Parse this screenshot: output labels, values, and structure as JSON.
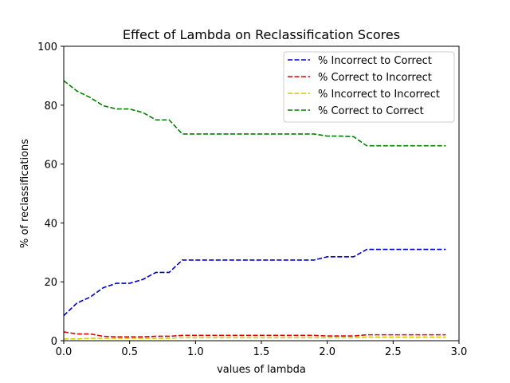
{
  "chart_data": {
    "type": "line",
    "title": "Effect of Lambda on Reclassification Scores",
    "xlabel": "values of lambda",
    "ylabel": "% of reclassifications",
    "xlim": [
      0.0,
      3.0
    ],
    "ylim": [
      0,
      100
    ],
    "x_ticks": [
      "0.0",
      "0.5",
      "1.0",
      "1.5",
      "2.0",
      "2.5",
      "3.0"
    ],
    "y_ticks": [
      "0",
      "20",
      "40",
      "60",
      "80",
      "100"
    ],
    "legend_position": "top-right",
    "grid": false,
    "x": [
      0.0,
      0.1,
      0.2,
      0.3,
      0.4,
      0.5,
      0.6,
      0.7,
      0.8,
      0.9,
      1.0,
      1.1,
      1.2,
      1.3,
      1.4,
      1.5,
      1.6,
      1.7,
      1.8,
      1.9,
      2.0,
      2.1,
      2.2,
      2.3,
      2.4,
      2.5,
      2.6,
      2.7,
      2.8,
      2.9
    ],
    "series": [
      {
        "name": "% Incorrect to Correct",
        "color": "#0000cc",
        "values": [
          8.5,
          12.8,
          14.8,
          18.0,
          19.5,
          19.5,
          20.8,
          23.2,
          23.2,
          27.4,
          27.4,
          27.4,
          27.4,
          27.4,
          27.4,
          27.4,
          27.4,
          27.4,
          27.4,
          27.4,
          28.5,
          28.5,
          28.5,
          31.0,
          31.0,
          31.0,
          31.0,
          31.0,
          31.0,
          31.0
        ]
      },
      {
        "name": "% Correct to Incorrect",
        "color": "#e00000",
        "values": [
          3.0,
          2.3,
          2.3,
          1.5,
          1.3,
          1.3,
          1.3,
          1.5,
          1.5,
          1.8,
          1.8,
          1.8,
          1.8,
          1.8,
          1.8,
          1.8,
          1.8,
          1.8,
          1.8,
          1.8,
          1.6,
          1.6,
          1.6,
          2.0,
          2.0,
          2.0,
          2.0,
          2.0,
          2.0,
          2.0
        ]
      },
      {
        "name": "% Incorrect to Incorrect",
        "color": "#cccc00",
        "values": [
          0.6,
          0.6,
          0.8,
          0.8,
          0.8,
          0.8,
          0.8,
          0.8,
          0.8,
          1.0,
          1.0,
          1.0,
          1.0,
          1.0,
          1.0,
          1.0,
          1.0,
          1.0,
          1.0,
          1.0,
          1.0,
          1.0,
          1.0,
          1.2,
          1.2,
          1.2,
          1.2,
          1.2,
          1.2,
          1.2
        ]
      },
      {
        "name": "% Correct to Correct",
        "color": "#007f00",
        "values": [
          88.3,
          84.8,
          82.6,
          79.8,
          78.7,
          78.7,
          77.5,
          75.0,
          75.0,
          70.2,
          70.2,
          70.2,
          70.2,
          70.2,
          70.2,
          70.2,
          70.2,
          70.2,
          70.2,
          70.2,
          69.5,
          69.5,
          69.3,
          66.2,
          66.2,
          66.2,
          66.2,
          66.2,
          66.2,
          66.2
        ]
      }
    ]
  }
}
